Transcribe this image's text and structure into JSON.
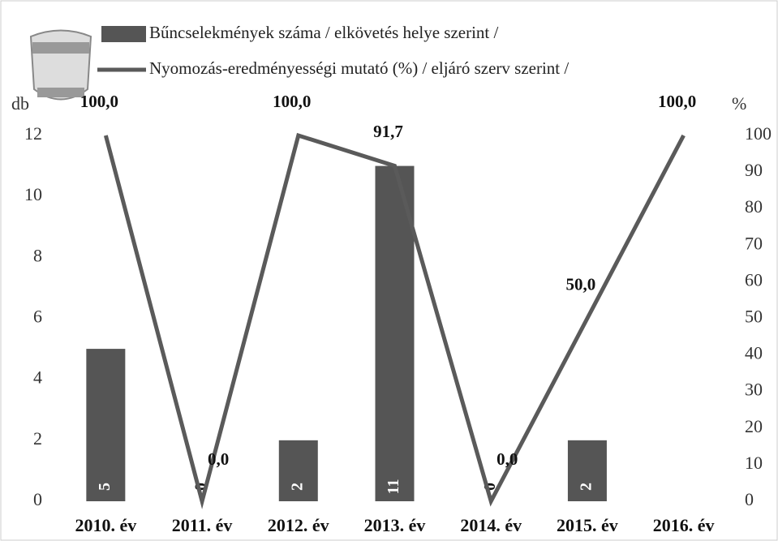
{
  "chart_data": {
    "type": "bar-line",
    "categories": [
      "2010. év",
      "2011. év",
      "2012. év",
      "2013. év",
      "2014. év",
      "2015. év",
      "2016. év"
    ],
    "series": [
      {
        "name": "Bűncselekmények száma / elkövetés helye szerint /",
        "type": "bar",
        "color": "#555555",
        "values": [
          5,
          0,
          2,
          11,
          0,
          2,
          null
        ]
      },
      {
        "name": "Nyomozás-eredményességi mutató (%) / eljáró szerv szerint /",
        "type": "line",
        "axis": "y2",
        "color": "#5a5a5a",
        "values": [
          100,
          0,
          100,
          91.7,
          0,
          50,
          100
        ],
        "value_labels": [
          "100,0",
          "0,0",
          "100,0",
          "91,7",
          "0,0",
          "50,0",
          "100,0"
        ]
      }
    ],
    "ylabel": "db",
    "y2label": "%",
    "ylim": [
      0,
      12
    ],
    "yticks": [
      0,
      2,
      4,
      6,
      8,
      10,
      12
    ],
    "y2lim": [
      0,
      100
    ],
    "y2ticks": [
      0,
      10,
      20,
      30,
      40,
      50,
      60,
      70,
      80,
      90,
      100
    ]
  }
}
